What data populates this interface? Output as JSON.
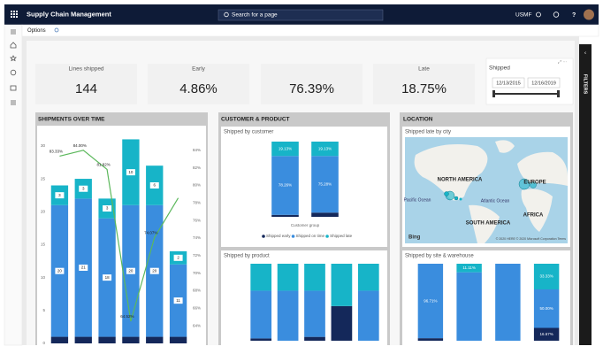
{
  "top_bar": {
    "app_title": "Supply Chain Management",
    "search_placeholder": "Search for a page",
    "company": "USMF"
  },
  "toolbar": {
    "options": "Options"
  },
  "kpi_cards": [
    {
      "label": "Lines shipped",
      "value": "144"
    },
    {
      "label": "Early",
      "value": "4.86%"
    },
    {
      "value": "76.39%"
    },
    {
      "label": "Late",
      "value": "18.75%"
    }
  ],
  "date_filter": {
    "title": "Shipped",
    "start": "12/13/2015",
    "end": "12/16/2019"
  },
  "filters_pane": {
    "label": "FILTERS"
  },
  "shipments_over_time": {
    "title": "SHIPMENTS OVER TIME",
    "chart": {
      "type": "bar",
      "stacked": true,
      "ylim": [
        0,
        32
      ],
      "yticks": [
        0,
        5,
        10,
        15,
        20,
        25,
        30
      ],
      "y2lim": [
        62,
        86
      ],
      "y2ticks": [
        {
          "value": 64,
          "label": "64%"
        },
        {
          "value": 66,
          "label": "66%"
        },
        {
          "value": 68,
          "label": "68%"
        },
        {
          "value": 70,
          "label": "70%"
        },
        {
          "value": 72,
          "label": "72%"
        },
        {
          "value": 74,
          "label": "74%"
        },
        {
          "value": 76,
          "label": "76%"
        },
        {
          "value": 78,
          "label": "78%"
        },
        {
          "value": 80,
          "label": "80%"
        },
        {
          "value": 82,
          "label": "82%"
        },
        {
          "value": 84,
          "label": "84%"
        }
      ],
      "series": [
        {
          "color": "#14285a",
          "values": [
            1,
            1,
            1,
            1,
            1,
            1
          ]
        },
        {
          "color": "#3a8dde",
          "values": [
            20,
            21,
            18,
            20,
            20,
            11
          ],
          "labels": true
        },
        {
          "color": "#17b4c8",
          "values": [
            3,
            3,
            3,
            10,
            6,
            2
          ],
          "labels": true
        },
        {
          "type": "line",
          "axis": "y2",
          "color": "#5cb85c",
          "values": [
            83.33,
            84.0,
            81.82,
            64.52,
            74.07,
            78.57
          ],
          "value_labels": [
            "83.33%",
            "84.00%",
            "81.82%",
            "64.52%",
            "74.07%",
            null
          ]
        }
      ]
    }
  },
  "customer_product": {
    "title": "CUSTOMER & PRODUCT",
    "by_customer": {
      "subtitle": "Shipped by customer",
      "chart": {
        "type": "bar",
        "stacked": true,
        "ylim": [
          0,
          100
        ],
        "x_title": "Customer group",
        "legend": "bottom",
        "series": [
          {
            "name": "Shipped early",
            "color": "#14285a",
            "values": [
              2.61,
              5.59
            ]
          },
          {
            "name": "Shipped on time",
            "color": "#3a8dde",
            "values": [
              78.26,
              75.28
            ],
            "value_labels": [
              "78.26%",
              "75.28%"
            ]
          },
          {
            "name": "Shipped late",
            "color": "#17b4c8",
            "values": [
              19.13,
              19.13
            ],
            "value_labels": [
              "19.13%",
              "19.13%"
            ]
          }
        ]
      }
    },
    "by_product": {
      "subtitle": "Shipped by product",
      "chart": {
        "type": "bar",
        "stacked": true,
        "ylim": [
          0,
          100
        ],
        "series": [
          {
            "color": "#14285a",
            "values": [
              3,
              0,
              5,
              45,
              0
            ]
          },
          {
            "color": "#3a8dde",
            "values": [
              62,
              65,
              60,
              0,
              65
            ]
          },
          {
            "color": "#17b4c8",
            "values": [
              35,
              35,
              35,
              55,
              35
            ]
          }
        ]
      }
    }
  },
  "location": {
    "title": "LOCATION",
    "map": {
      "subtitle": "Shipped late by city",
      "labels": [
        "NORTH AMERICA",
        "EUROPE",
        "Pacific Ocean",
        "Atlantic Ocean",
        "SOUTH AMERICA",
        "AFRICA"
      ],
      "brand": "Bing",
      "attribution": "© 2020 HERE © 2020 Microsoft Corporation Terms"
    },
    "by_site": {
      "subtitle": "Shipped by site & warehouse",
      "chart": {
        "type": "bar",
        "stacked": true,
        "ylim": [
          0,
          100
        ],
        "series": [
          {
            "color": "#14285a",
            "values": [
              3.29,
              0,
              0,
              16.67
            ],
            "value_labels": [
              null,
              null,
              null,
              "16.67%"
            ]
          },
          {
            "color": "#3a8dde",
            "values": [
              96.71,
              88.89,
              100,
              50
            ],
            "value_labels": [
              "96.71%",
              null,
              null,
              "50.00%"
            ]
          },
          {
            "color": "#17b4c8",
            "values": [
              0,
              11.11,
              0,
              33.33
            ],
            "value_labels": [
              null,
              "11.11%",
              null,
              "33.33%"
            ]
          }
        ]
      }
    }
  }
}
